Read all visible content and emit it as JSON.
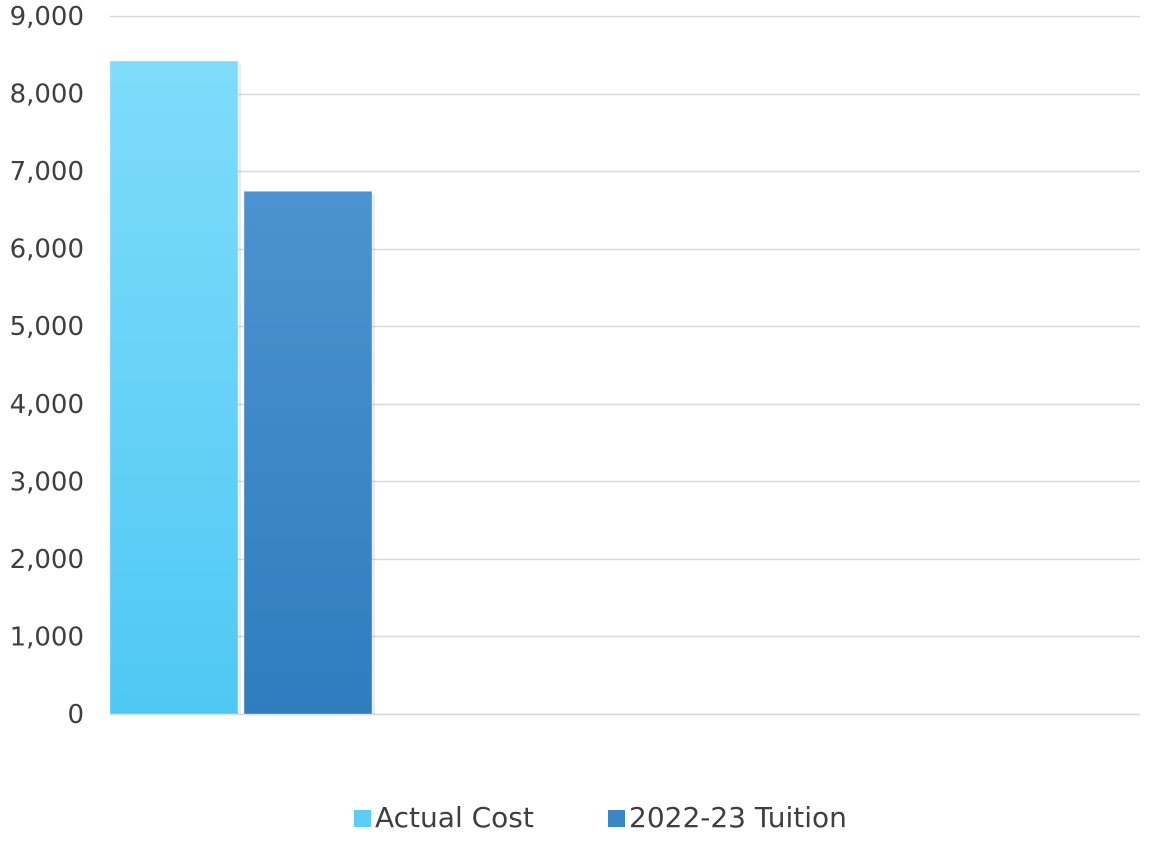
{
  "chart_data": {
    "type": "bar",
    "categories": [
      ""
    ],
    "series": [
      {
        "name": "Actual Cost",
        "values": [
          8420
        ],
        "color": "#5ccdf6"
      },
      {
        "name": "2022-23 Tuition",
        "values": [
          6740
        ],
        "color": "#3a87c6"
      }
    ],
    "ylim": [
      0,
      9000
    ],
    "yticks": [
      0,
      1000,
      2000,
      3000,
      4000,
      5000,
      6000,
      7000,
      8000,
      9000
    ],
    "ytick_labels": [
      "0",
      "1,000",
      "2,000",
      "3,000",
      "4,000",
      "5,000",
      "6,000",
      "7,000",
      "8,000",
      "9,000"
    ],
    "grid": true,
    "legend_position": "bottom-center",
    "title": "",
    "xlabel": "",
    "ylabel": ""
  }
}
